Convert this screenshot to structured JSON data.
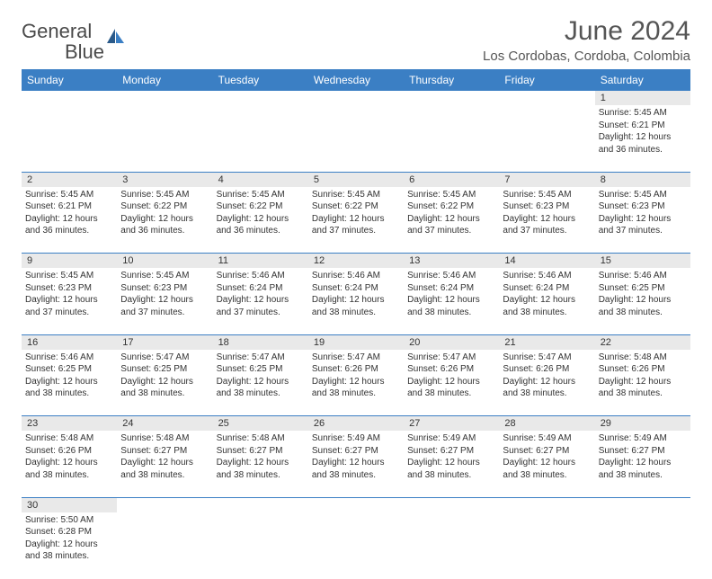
{
  "logo": {
    "text_general": "General",
    "text_blue": "Blue"
  },
  "title": "June 2024",
  "location": "Los Cordobas, Cordoba, Colombia",
  "colors": {
    "header_bg": "#3b7fc4",
    "header_fg": "#ffffff",
    "daynum_bg": "#e9e9e9",
    "row_divider": "#3b7fc4",
    "text": "#333333",
    "title_color": "#555555",
    "logo_gray": "#4a4a4a",
    "logo_blue": "#3b7fc4"
  },
  "weekdays": [
    "Sunday",
    "Monday",
    "Tuesday",
    "Wednesday",
    "Thursday",
    "Friday",
    "Saturday"
  ],
  "labels": {
    "sunrise": "Sunrise:",
    "sunset": "Sunset:",
    "daylight": "Daylight:"
  },
  "first_weekday_index": 6,
  "days": [
    {
      "n": 1,
      "sunrise": "5:45 AM",
      "sunset": "6:21 PM",
      "daylight": "12 hours and 36 minutes."
    },
    {
      "n": 2,
      "sunrise": "5:45 AM",
      "sunset": "6:21 PM",
      "daylight": "12 hours and 36 minutes."
    },
    {
      "n": 3,
      "sunrise": "5:45 AM",
      "sunset": "6:22 PM",
      "daylight": "12 hours and 36 minutes."
    },
    {
      "n": 4,
      "sunrise": "5:45 AM",
      "sunset": "6:22 PM",
      "daylight": "12 hours and 36 minutes."
    },
    {
      "n": 5,
      "sunrise": "5:45 AM",
      "sunset": "6:22 PM",
      "daylight": "12 hours and 37 minutes."
    },
    {
      "n": 6,
      "sunrise": "5:45 AM",
      "sunset": "6:22 PM",
      "daylight": "12 hours and 37 minutes."
    },
    {
      "n": 7,
      "sunrise": "5:45 AM",
      "sunset": "6:23 PM",
      "daylight": "12 hours and 37 minutes."
    },
    {
      "n": 8,
      "sunrise": "5:45 AM",
      "sunset": "6:23 PM",
      "daylight": "12 hours and 37 minutes."
    },
    {
      "n": 9,
      "sunrise": "5:45 AM",
      "sunset": "6:23 PM",
      "daylight": "12 hours and 37 minutes."
    },
    {
      "n": 10,
      "sunrise": "5:45 AM",
      "sunset": "6:23 PM",
      "daylight": "12 hours and 37 minutes."
    },
    {
      "n": 11,
      "sunrise": "5:46 AM",
      "sunset": "6:24 PM",
      "daylight": "12 hours and 37 minutes."
    },
    {
      "n": 12,
      "sunrise": "5:46 AM",
      "sunset": "6:24 PM",
      "daylight": "12 hours and 38 minutes."
    },
    {
      "n": 13,
      "sunrise": "5:46 AM",
      "sunset": "6:24 PM",
      "daylight": "12 hours and 38 minutes."
    },
    {
      "n": 14,
      "sunrise": "5:46 AM",
      "sunset": "6:24 PM",
      "daylight": "12 hours and 38 minutes."
    },
    {
      "n": 15,
      "sunrise": "5:46 AM",
      "sunset": "6:25 PM",
      "daylight": "12 hours and 38 minutes."
    },
    {
      "n": 16,
      "sunrise": "5:46 AM",
      "sunset": "6:25 PM",
      "daylight": "12 hours and 38 minutes."
    },
    {
      "n": 17,
      "sunrise": "5:47 AM",
      "sunset": "6:25 PM",
      "daylight": "12 hours and 38 minutes."
    },
    {
      "n": 18,
      "sunrise": "5:47 AM",
      "sunset": "6:25 PM",
      "daylight": "12 hours and 38 minutes."
    },
    {
      "n": 19,
      "sunrise": "5:47 AM",
      "sunset": "6:26 PM",
      "daylight": "12 hours and 38 minutes."
    },
    {
      "n": 20,
      "sunrise": "5:47 AM",
      "sunset": "6:26 PM",
      "daylight": "12 hours and 38 minutes."
    },
    {
      "n": 21,
      "sunrise": "5:47 AM",
      "sunset": "6:26 PM",
      "daylight": "12 hours and 38 minutes."
    },
    {
      "n": 22,
      "sunrise": "5:48 AM",
      "sunset": "6:26 PM",
      "daylight": "12 hours and 38 minutes."
    },
    {
      "n": 23,
      "sunrise": "5:48 AM",
      "sunset": "6:26 PM",
      "daylight": "12 hours and 38 minutes."
    },
    {
      "n": 24,
      "sunrise": "5:48 AM",
      "sunset": "6:27 PM",
      "daylight": "12 hours and 38 minutes."
    },
    {
      "n": 25,
      "sunrise": "5:48 AM",
      "sunset": "6:27 PM",
      "daylight": "12 hours and 38 minutes."
    },
    {
      "n": 26,
      "sunrise": "5:49 AM",
      "sunset": "6:27 PM",
      "daylight": "12 hours and 38 minutes."
    },
    {
      "n": 27,
      "sunrise": "5:49 AM",
      "sunset": "6:27 PM",
      "daylight": "12 hours and 38 minutes."
    },
    {
      "n": 28,
      "sunrise": "5:49 AM",
      "sunset": "6:27 PM",
      "daylight": "12 hours and 38 minutes."
    },
    {
      "n": 29,
      "sunrise": "5:49 AM",
      "sunset": "6:27 PM",
      "daylight": "12 hours and 38 minutes."
    },
    {
      "n": 30,
      "sunrise": "5:50 AM",
      "sunset": "6:28 PM",
      "daylight": "12 hours and 38 minutes."
    }
  ]
}
